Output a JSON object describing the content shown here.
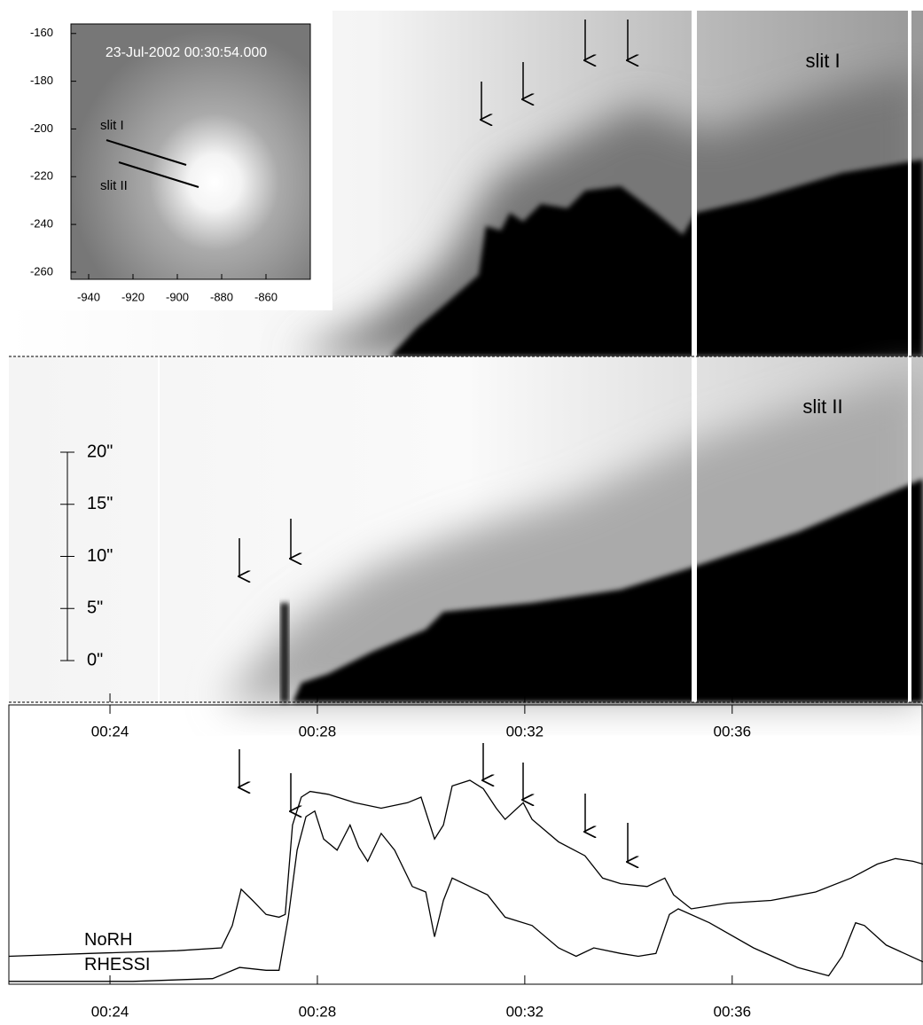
{
  "chart_data": [
    {
      "type": "image",
      "title": "23-Jul-2002 00:30:54.000",
      "slit_labels": [
        "slit I",
        "slit II"
      ],
      "xlim": [
        -948,
        -840
      ],
      "xticks": [
        -940,
        -920,
        -900,
        -880,
        -860
      ],
      "ylim": [
        -263,
        -156
      ],
      "yticks": [
        -160,
        -180,
        -200,
        -220,
        -240,
        -260
      ]
    },
    {
      "type": "image",
      "panel_labels": [
        "slit I",
        "slit II"
      ],
      "scale_lim": [
        0,
        20
      ],
      "scale_ticks": [
        {
          "value": 0,
          "label": "0\""
        },
        {
          "value": 5,
          "label": "5\""
        },
        {
          "value": 10,
          "label": "10\""
        },
        {
          "value": 15,
          "label": "15\""
        },
        {
          "value": 20,
          "label": "20\""
        }
      ],
      "xlim": [
        22.05,
        39.68
      ],
      "xticks": [
        {
          "value": 24,
          "label": "00:24"
        },
        {
          "value": 28,
          "label": "00:28"
        },
        {
          "value": 32,
          "label": "00:32"
        },
        {
          "value": 36,
          "label": "00:36"
        }
      ]
    },
    {
      "type": "line",
      "xlim": [
        22.05,
        39.68
      ],
      "ylim": [
        0,
        1
      ],
      "xticks": [
        {
          "value": 24,
          "label": "00:24"
        },
        {
          "value": 28,
          "label": "00:28"
        },
        {
          "value": 32,
          "label": "00:32"
        },
        {
          "value": 36,
          "label": "00:36"
        }
      ],
      "series": [
        {
          "name": "NoRH",
          "color": "#000000",
          "x": [
            22.05,
            23.59,
            25.3,
            26.15,
            26.36,
            26.53,
            26.75,
            27.01,
            27.26,
            27.38,
            27.52,
            27.69,
            27.86,
            28.21,
            28.72,
            29.23,
            29.74,
            30.0,
            30.26,
            30.43,
            30.6,
            30.94,
            31.2,
            31.45,
            31.62,
            31.97,
            32.14,
            32.65,
            33.16,
            33.5,
            33.85,
            34.36,
            34.7,
            34.87,
            35.21,
            35.9,
            36.75,
            37.61,
            38.29,
            38.8,
            39.15,
            39.49,
            39.68
          ],
          "values": [
            0.1,
            0.11,
            0.12,
            0.13,
            0.21,
            0.34,
            0.3,
            0.25,
            0.24,
            0.25,
            0.57,
            0.67,
            0.69,
            0.68,
            0.65,
            0.63,
            0.65,
            0.67,
            0.52,
            0.57,
            0.71,
            0.73,
            0.7,
            0.63,
            0.59,
            0.65,
            0.59,
            0.51,
            0.46,
            0.38,
            0.36,
            0.35,
            0.38,
            0.32,
            0.27,
            0.29,
            0.3,
            0.33,
            0.38,
            0.43,
            0.45,
            0.44,
            0.43
          ]
        },
        {
          "name": "RHESSI",
          "color": "#000000",
          "x": [
            22.05,
            24.44,
            25.98,
            26.5,
            27.01,
            27.26,
            27.44,
            27.61,
            27.78,
            27.95,
            28.12,
            28.38,
            28.63,
            28.8,
            28.97,
            29.23,
            29.49,
            29.83,
            30.09,
            30.26,
            30.43,
            30.6,
            30.94,
            31.28,
            31.62,
            32.14,
            32.65,
            32.99,
            33.33,
            33.85,
            34.19,
            34.53,
            34.79,
            34.96,
            35.56,
            36.41,
            37.26,
            37.86,
            38.12,
            38.38,
            38.55,
            38.97,
            39.68
          ],
          "values": [
            0.01,
            0.01,
            0.02,
            0.06,
            0.05,
            0.05,
            0.24,
            0.48,
            0.6,
            0.62,
            0.52,
            0.48,
            0.57,
            0.49,
            0.44,
            0.54,
            0.48,
            0.35,
            0.33,
            0.17,
            0.3,
            0.38,
            0.35,
            0.32,
            0.24,
            0.21,
            0.13,
            0.1,
            0.13,
            0.11,
            0.1,
            0.11,
            0.25,
            0.27,
            0.22,
            0.13,
            0.06,
            0.03,
            0.1,
            0.22,
            0.21,
            0.14,
            0.08
          ]
        }
      ]
    }
  ]
}
